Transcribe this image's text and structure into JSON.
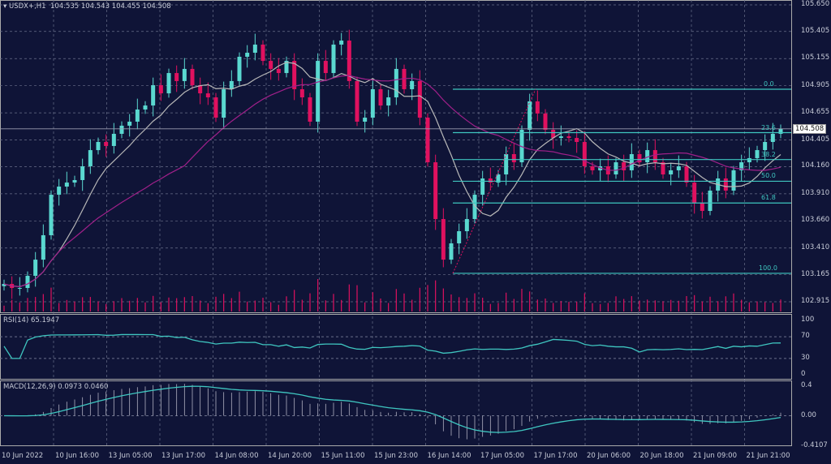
{
  "header": {
    "symbol": "USDX+,H1",
    "ohlc": "104.535 104.543 104.455 104.508"
  },
  "current_price": "104.508",
  "colors": {
    "background": "#0f1437",
    "bull": "#5ad8d0",
    "bear": "#e0115f",
    "ma_fast": "#b8b8b8",
    "ma_slow": "#a0208a",
    "indicator": "#3fc6c0",
    "grid": "#6a6f8a"
  },
  "chart_data": {
    "type": "candlestick",
    "price_axis": {
      "range": [
        102.915,
        105.65
      ],
      "ticks": [
        "105.650",
        "105.405",
        "105.155",
        "104.905",
        "104.655",
        "104.405",
        "104.160",
        "103.910",
        "103.660",
        "103.410",
        "103.165",
        "102.915"
      ]
    },
    "time_ticks": [
      "10 Jun 2022",
      "10 Jun 16:00",
      "13 Jun 05:00",
      "13 Jun 17:00",
      "14 Jun 08:00",
      "14 Jun 20:00",
      "15 Jun 11:00",
      "15 Jun 23:00",
      "16 Jun 14:00",
      "17 Jun 05:00",
      "17 Jun 17:00",
      "20 Jun 06:00",
      "20 Jun 18:00",
      "21 Jun 09:00",
      "21 Jun 21:00"
    ],
    "grid": true,
    "closes": [
      103.079,
      103.042,
      103.042,
      103.154,
      103.303,
      103.528,
      103.901,
      103.976,
      104.013,
      104.036,
      104.163,
      104.312,
      104.387,
      104.35,
      104.462,
      104.537,
      104.574,
      104.686,
      104.723,
      104.91,
      104.835,
      105.022,
      104.948,
      105.06,
      104.91,
      104.835,
      104.798,
      104.611,
      104.873,
      104.948,
      105.172,
      105.209,
      105.284,
      105.134,
      105.06,
      105.022,
      105.134,
      104.873,
      104.798,
      104.574,
      105.134,
      105.022,
      105.284,
      105.321,
      104.948,
      104.574,
      104.611,
      104.873,
      104.723,
      104.798,
      105.06,
      104.873,
      104.948,
      104.611,
      104.2,
      103.677,
      103.303,
      103.453,
      103.565,
      103.677,
      103.901,
      104.051,
      104.013,
      104.088,
      104.275,
      104.2,
      104.499,
      104.761,
      104.649,
      104.499,
      104.424,
      104.439,
      104.424,
      104.387,
      104.163,
      104.126,
      104.163,
      104.088,
      104.2,
      104.126,
      104.275,
      104.2,
      104.312,
      104.2,
      104.088,
      104.126,
      104.163,
      104.013,
      103.827,
      103.752,
      103.939,
      104.051,
      103.939,
      104.126,
      104.2,
      104.238,
      104.312,
      104.387,
      104.462,
      104.508
    ],
    "fibonacci": [
      {
        "label": "0.0",
        "price": 104.873
      },
      {
        "label": "23.6",
        "price": 104.473
      },
      {
        "label": "38.2",
        "price": 104.225
      },
      {
        "label": "50.0",
        "price": 104.025
      },
      {
        "label": "61.8",
        "price": 103.825
      },
      {
        "label": "100.0",
        "price": 103.177
      }
    ],
    "rsi": {
      "label": "RSI(14) 65.1947",
      "ticks": [
        "100",
        "70",
        "30",
        "0"
      ]
    },
    "macd": {
      "label": "MACD(12,26,9) 0.0973 0.0460",
      "ticks": [
        "0.4",
        "0.00",
        "-0.4107"
      ],
      "range": [
        -0.4107,
        0.4
      ]
    }
  }
}
